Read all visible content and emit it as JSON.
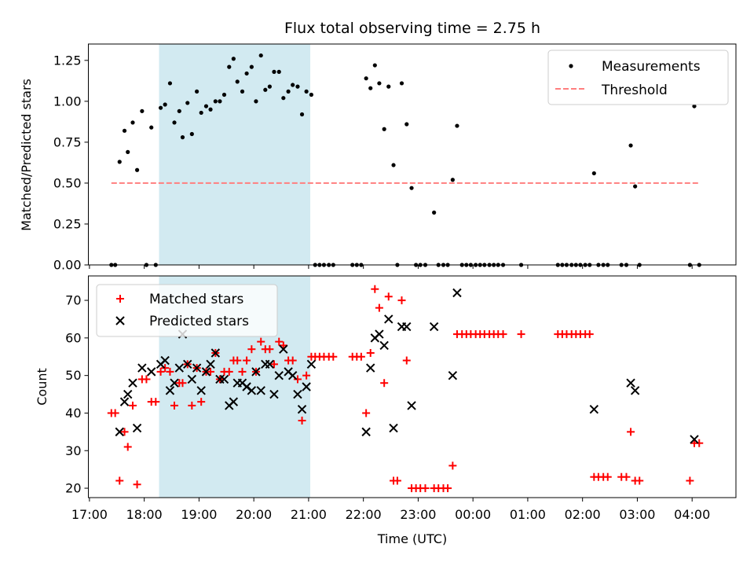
{
  "figure": {
    "title": "Flux total observing time = 2.75 h",
    "xlabel": "Time (UTC)",
    "x_ticks": [
      "17:00",
      "18:00",
      "19:00",
      "20:00",
      "21:00",
      "22:00",
      "23:00",
      "00:00",
      "01:00",
      "02:00",
      "03:00",
      "04:00"
    ],
    "x_range_hours": [
      16.98,
      28.8
    ],
    "highlight_interval_hours": [
      18.27,
      21.03
    ],
    "highlight_color": "#add8e6"
  },
  "chart_data": [
    {
      "type": "scatter",
      "ylabel": "Matched/Predicted stars",
      "ylim": [
        0,
        1.35
      ],
      "y_ticks": [
        "0.00",
        "0.25",
        "0.50",
        "0.75",
        "1.00",
        "1.25"
      ],
      "legend_position": "top-right",
      "series": [
        {
          "name": "Measurements",
          "marker": "dot",
          "color": "#000000",
          "points": [
            [
              17.4,
              0
            ],
            [
              17.47,
              0
            ],
            [
              17.55,
              0.63
            ],
            [
              17.64,
              0.82
            ],
            [
              17.7,
              0.69
            ],
            [
              17.79,
              0.87
            ],
            [
              17.87,
              0.58
            ],
            [
              17.96,
              0.94
            ],
            [
              18.04,
              0
            ],
            [
              18.13,
              0.84
            ],
            [
              18.21,
              0
            ],
            [
              18.3,
              0.96
            ],
            [
              18.38,
              0.98
            ],
            [
              18.47,
              1.11
            ],
            [
              18.55,
              0.87
            ],
            [
              18.64,
              0.94
            ],
            [
              18.7,
              0.78
            ],
            [
              18.79,
              0.99
            ],
            [
              18.87,
              0.8
            ],
            [
              18.96,
              1.06
            ],
            [
              19.04,
              0.93
            ],
            [
              19.13,
              0.97
            ],
            [
              19.21,
              0.95
            ],
            [
              19.3,
              1.0
            ],
            [
              19.38,
              1.0
            ],
            [
              19.46,
              1.04
            ],
            [
              19.55,
              1.21
            ],
            [
              19.63,
              1.26
            ],
            [
              19.7,
              1.12
            ],
            [
              19.79,
              1.06
            ],
            [
              19.87,
              1.17
            ],
            [
              19.96,
              1.21
            ],
            [
              20.04,
              1.0
            ],
            [
              20.13,
              1.28
            ],
            [
              20.21,
              1.07
            ],
            [
              20.29,
              1.09
            ],
            [
              20.37,
              1.18
            ],
            [
              20.46,
              1.18
            ],
            [
              20.54,
              1.02
            ],
            [
              20.63,
              1.06
            ],
            [
              20.71,
              1.1
            ],
            [
              20.8,
              1.09
            ],
            [
              20.88,
              0.92
            ],
            [
              20.96,
              1.06
            ],
            [
              21.05,
              1.04
            ],
            [
              21.12,
              0
            ],
            [
              21.2,
              0
            ],
            [
              21.28,
              0
            ],
            [
              21.37,
              0
            ],
            [
              21.45,
              0
            ],
            [
              21.8,
              0
            ],
            [
              21.88,
              0
            ],
            [
              21.96,
              0
            ],
            [
              22.05,
              1.14
            ],
            [
              22.13,
              1.08
            ],
            [
              22.21,
              1.22
            ],
            [
              22.29,
              1.11
            ],
            [
              22.38,
              0.83
            ],
            [
              22.46,
              1.09
            ],
            [
              22.55,
              0.61
            ],
            [
              22.62,
              0
            ],
            [
              22.7,
              1.11
            ],
            [
              22.79,
              0.86
            ],
            [
              22.88,
              0.47
            ],
            [
              22.96,
              0
            ],
            [
              23.04,
              0
            ],
            [
              23.13,
              0
            ],
            [
              23.29,
              0.32
            ],
            [
              23.37,
              0
            ],
            [
              23.46,
              0
            ],
            [
              23.54,
              0
            ],
            [
              23.63,
              0.52
            ],
            [
              23.71,
              0.85
            ],
            [
              23.8,
              0
            ],
            [
              23.88,
              0
            ],
            [
              23.96,
              0
            ],
            [
              24.05,
              0
            ],
            [
              24.13,
              0
            ],
            [
              24.21,
              0
            ],
            [
              24.3,
              0
            ],
            [
              24.38,
              0
            ],
            [
              24.46,
              0
            ],
            [
              24.55,
              0
            ],
            [
              24.88,
              0
            ],
            [
              25.55,
              0
            ],
            [
              25.63,
              0
            ],
            [
              25.71,
              0
            ],
            [
              25.8,
              0
            ],
            [
              25.88,
              0
            ],
            [
              25.96,
              0
            ],
            [
              26.05,
              0
            ],
            [
              26.13,
              0
            ],
            [
              26.21,
              0.56
            ],
            [
              26.29,
              0
            ],
            [
              26.38,
              0
            ],
            [
              26.46,
              0
            ],
            [
              26.71,
              0
            ],
            [
              26.8,
              0
            ],
            [
              26.88,
              0.73
            ],
            [
              26.96,
              0.48
            ],
            [
              27.04,
              0
            ],
            [
              27.96,
              0
            ],
            [
              28.04,
              0.97
            ],
            [
              28.13,
              0
            ]
          ]
        },
        {
          "name": "Threshold",
          "marker": "dashed-line",
          "color": "#ff7f7f",
          "points": [
            [
              17.4,
              0.5
            ],
            [
              28.13,
              0.5
            ]
          ]
        }
      ]
    },
    {
      "type": "scatter",
      "ylabel": "Count",
      "ylim": [
        17.5,
        76.5
      ],
      "y_ticks": [
        "20",
        "30",
        "40",
        "50",
        "60",
        "70"
      ],
      "legend_position": "top-left",
      "series": [
        {
          "name": "Matched stars",
          "marker": "plus",
          "color": "#ff0000",
          "points": [
            [
              17.4,
              40
            ],
            [
              17.47,
              40
            ],
            [
              17.55,
              22
            ],
            [
              17.64,
              35
            ],
            [
              17.7,
              31
            ],
            [
              17.79,
              42
            ],
            [
              17.87,
              21
            ],
            [
              17.96,
              49
            ],
            [
              18.04,
              49
            ],
            [
              18.13,
              43
            ],
            [
              18.21,
              43
            ],
            [
              18.3,
              51
            ],
            [
              18.38,
              52
            ],
            [
              18.47,
              51
            ],
            [
              18.55,
              42
            ],
            [
              18.64,
              48
            ],
            [
              18.7,
              48
            ],
            [
              18.79,
              53
            ],
            [
              18.87,
              42
            ],
            [
              18.96,
              52
            ],
            [
              19.04,
              43
            ],
            [
              19.13,
              51
            ],
            [
              19.21,
              51
            ],
            [
              19.3,
              56
            ],
            [
              19.38,
              49
            ],
            [
              19.46,
              51
            ],
            [
              19.55,
              51
            ],
            [
              19.63,
              54
            ],
            [
              19.7,
              54
            ],
            [
              19.79,
              51
            ],
            [
              19.87,
              54
            ],
            [
              19.96,
              57
            ],
            [
              20.04,
              51
            ],
            [
              20.13,
              59
            ],
            [
              20.21,
              57
            ],
            [
              20.29,
              57
            ],
            [
              20.37,
              53
            ],
            [
              20.46,
              59
            ],
            [
              20.54,
              58
            ],
            [
              20.63,
              54
            ],
            [
              20.71,
              54
            ],
            [
              20.8,
              49
            ],
            [
              20.88,
              38
            ],
            [
              20.96,
              50
            ],
            [
              21.05,
              55
            ],
            [
              21.12,
              55
            ],
            [
              21.2,
              55
            ],
            [
              21.28,
              55
            ],
            [
              21.37,
              55
            ],
            [
              21.45,
              55
            ],
            [
              21.8,
              55
            ],
            [
              21.88,
              55
            ],
            [
              21.96,
              55
            ],
            [
              22.05,
              40
            ],
            [
              22.13,
              56
            ],
            [
              22.21,
              73
            ],
            [
              22.29,
              68
            ],
            [
              22.38,
              48
            ],
            [
              22.46,
              71
            ],
            [
              22.55,
              22
            ],
            [
              22.62,
              22
            ],
            [
              22.7,
              70
            ],
            [
              22.79,
              54
            ],
            [
              22.88,
              20
            ],
            [
              22.96,
              20
            ],
            [
              23.04,
              20
            ],
            [
              23.13,
              20
            ],
            [
              23.29,
              20
            ],
            [
              23.37,
              20
            ],
            [
              23.46,
              20
            ],
            [
              23.54,
              20
            ],
            [
              23.63,
              26
            ],
            [
              23.71,
              61
            ],
            [
              23.8,
              61
            ],
            [
              23.88,
              61
            ],
            [
              23.96,
              61
            ],
            [
              24.05,
              61
            ],
            [
              24.13,
              61
            ],
            [
              24.21,
              61
            ],
            [
              24.3,
              61
            ],
            [
              24.38,
              61
            ],
            [
              24.46,
              61
            ],
            [
              24.55,
              61
            ],
            [
              24.88,
              61
            ],
            [
              25.55,
              61
            ],
            [
              25.63,
              61
            ],
            [
              25.71,
              61
            ],
            [
              25.8,
              61
            ],
            [
              25.88,
              61
            ],
            [
              25.96,
              61
            ],
            [
              26.05,
              61
            ],
            [
              26.13,
              61
            ],
            [
              26.21,
              23
            ],
            [
              26.29,
              23
            ],
            [
              26.38,
              23
            ],
            [
              26.46,
              23
            ],
            [
              26.71,
              23
            ],
            [
              26.8,
              23
            ],
            [
              26.88,
              35
            ],
            [
              26.96,
              22
            ],
            [
              27.04,
              22
            ],
            [
              27.96,
              22
            ],
            [
              28.04,
              32
            ],
            [
              28.13,
              32
            ]
          ]
        },
        {
          "name": "Predicted stars",
          "marker": "x",
          "color": "#000000",
          "points": [
            [
              17.55,
              35
            ],
            [
              17.64,
              43
            ],
            [
              17.7,
              45
            ],
            [
              17.79,
              48
            ],
            [
              17.87,
              36
            ],
            [
              17.96,
              52
            ],
            [
              18.13,
              51
            ],
            [
              18.3,
              53
            ],
            [
              18.38,
              54
            ],
            [
              18.47,
              46
            ],
            [
              18.55,
              48
            ],
            [
              18.64,
              52
            ],
            [
              18.7,
              61
            ],
            [
              18.79,
              53
            ],
            [
              18.87,
              49
            ],
            [
              18.96,
              52
            ],
            [
              19.04,
              46
            ],
            [
              19.13,
              51
            ],
            [
              19.21,
              53
            ],
            [
              19.3,
              56
            ],
            [
              19.38,
              49
            ],
            [
              19.46,
              49
            ],
            [
              19.55,
              42
            ],
            [
              19.63,
              43
            ],
            [
              19.7,
              48
            ],
            [
              19.79,
              48
            ],
            [
              19.87,
              47
            ],
            [
              19.96,
              46
            ],
            [
              20.04,
              51
            ],
            [
              20.13,
              46
            ],
            [
              20.21,
              53
            ],
            [
              20.29,
              53
            ],
            [
              20.37,
              45
            ],
            [
              20.46,
              50
            ],
            [
              20.54,
              57
            ],
            [
              20.63,
              51
            ],
            [
              20.71,
              50
            ],
            [
              20.8,
              45
            ],
            [
              20.88,
              41
            ],
            [
              20.96,
              47
            ],
            [
              21.05,
              53
            ],
            [
              22.05,
              35
            ],
            [
              22.13,
              52
            ],
            [
              22.21,
              60
            ],
            [
              22.29,
              61
            ],
            [
              22.38,
              58
            ],
            [
              22.46,
              65
            ],
            [
              22.55,
              36
            ],
            [
              22.7,
              63
            ],
            [
              22.79,
              63
            ],
            [
              22.88,
              42
            ],
            [
              23.29,
              63
            ],
            [
              23.63,
              50
            ],
            [
              23.71,
              72
            ],
            [
              26.21,
              41
            ],
            [
              26.88,
              48
            ],
            [
              26.96,
              46
            ],
            [
              28.04,
              33
            ]
          ]
        }
      ]
    }
  ]
}
